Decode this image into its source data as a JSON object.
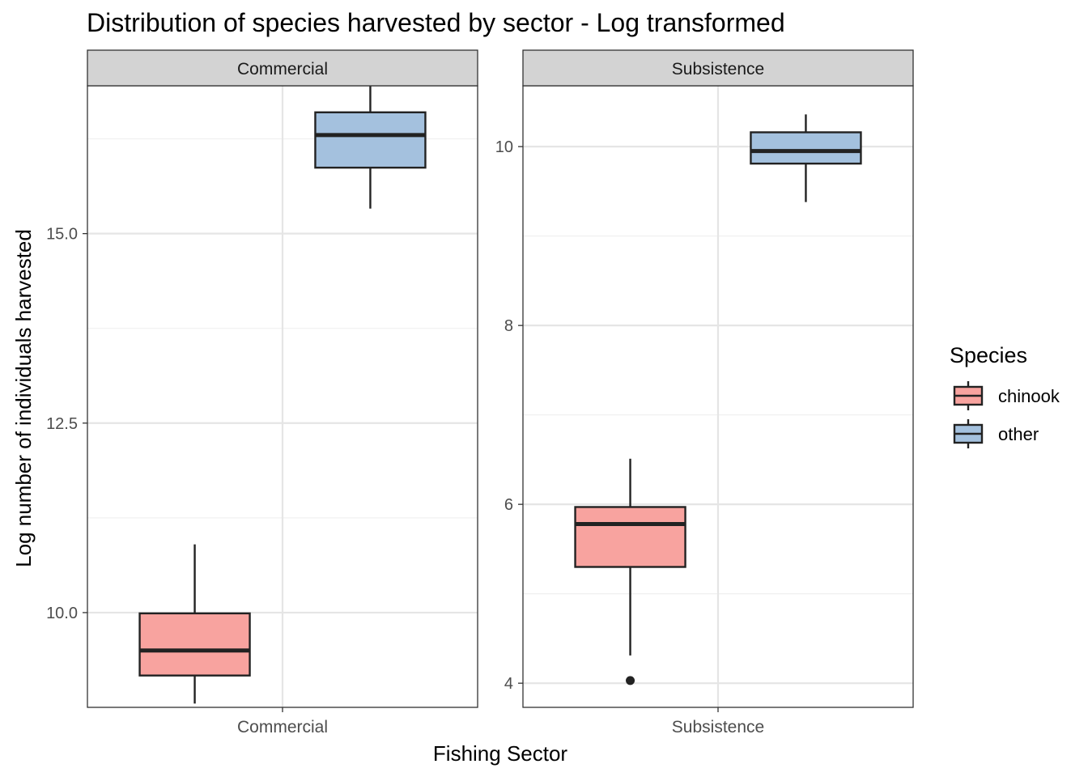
{
  "title": "Distribution of species harvested by sector - Log transformed",
  "x_axis_label": "Fishing Sector",
  "y_axis_label": "Log number of individuals harvested",
  "legend": {
    "title": "Species",
    "position": "right",
    "items": [
      {
        "label": "chinook",
        "color": "#F8A39F"
      },
      {
        "label": "other",
        "color": "#A4C1DE"
      }
    ]
  },
  "colors": {
    "chinook": "#F8A39F",
    "other": "#A4C1DE",
    "box_stroke": "#222222",
    "strip_fill": "#D3D3D3",
    "grid_major": "#E5E5E5",
    "grid_minor": "#F0F0F0"
  },
  "chart_data": [
    {
      "type": "box",
      "facet": "Commercial",
      "category": "Commercial",
      "ylim": [
        8.75,
        16.95
      ],
      "yticks": [
        10.0,
        12.5,
        15.0
      ],
      "ytick_labels": [
        "10.0",
        "12.5",
        "15.0"
      ],
      "minor_yticks": [
        8.75,
        11.25,
        13.75,
        16.25
      ],
      "grid": true,
      "series": [
        {
          "name": "chinook",
          "whisker_low": 8.8,
          "q1": 9.17,
          "median": 9.5,
          "q3": 9.99,
          "whisker_high": 10.9,
          "outliers": []
        },
        {
          "name": "other",
          "whisker_low": 15.33,
          "q1": 15.87,
          "median": 16.3,
          "q3": 16.6,
          "whisker_high": 17.05,
          "outliers": []
        }
      ]
    },
    {
      "type": "box",
      "facet": "Subsistence",
      "category": "Subsistence",
      "ylim": [
        3.73,
        10.68
      ],
      "yticks": [
        4,
        6,
        8,
        10
      ],
      "ytick_labels": [
        "4",
        "6",
        "8",
        "10"
      ],
      "minor_yticks": [
        5,
        7,
        9
      ],
      "grid": true,
      "series": [
        {
          "name": "chinook",
          "whisker_low": 4.31,
          "q1": 5.3,
          "median": 5.78,
          "q3": 5.97,
          "whisker_high": 6.51,
          "outliers": [
            4.03
          ]
        },
        {
          "name": "other",
          "whisker_low": 9.38,
          "q1": 9.81,
          "median": 9.95,
          "q3": 10.16,
          "whisker_high": 10.36,
          "outliers": []
        }
      ]
    }
  ]
}
